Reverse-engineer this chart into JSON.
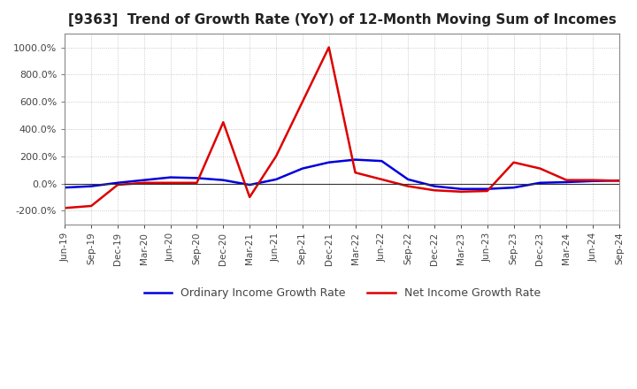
{
  "title": "[9363]  Trend of Growth Rate (YoY) of 12-Month Moving Sum of Incomes",
  "title_fontsize": 11,
  "ylim": [
    -300,
    1100
  ],
  "yticks": [
    -200,
    0,
    200,
    400,
    600,
    800,
    1000
  ],
  "background_color": "#ffffff",
  "grid_color": "#aaaaaa",
  "legend_labels": [
    "Ordinary Income Growth Rate",
    "Net Income Growth Rate"
  ],
  "legend_colors": [
    "#0000dd",
    "#dd0000"
  ],
  "x_labels": [
    "Jun-19",
    "Sep-19",
    "Dec-19",
    "Mar-20",
    "Jun-20",
    "Sep-20",
    "Dec-20",
    "Mar-21",
    "Jun-21",
    "Sep-21",
    "Dec-21",
    "Mar-22",
    "Jun-22",
    "Sep-22",
    "Dec-22",
    "Mar-23",
    "Jun-23",
    "Sep-23",
    "Dec-23",
    "Mar-24",
    "Jun-24",
    "Sep-24"
  ],
  "ordinary_income_growth": [
    -30,
    -20,
    5,
    25,
    45,
    40,
    25,
    -10,
    30,
    110,
    155,
    175,
    165,
    30,
    -20,
    -40,
    -40,
    -30,
    5,
    10,
    18,
    22
  ],
  "net_income_growth": [
    -180,
    -165,
    -10,
    5,
    5,
    5,
    450,
    -100,
    200,
    600,
    1000,
    80,
    30,
    -20,
    -50,
    -60,
    -55,
    155,
    110,
    25,
    25,
    20
  ]
}
